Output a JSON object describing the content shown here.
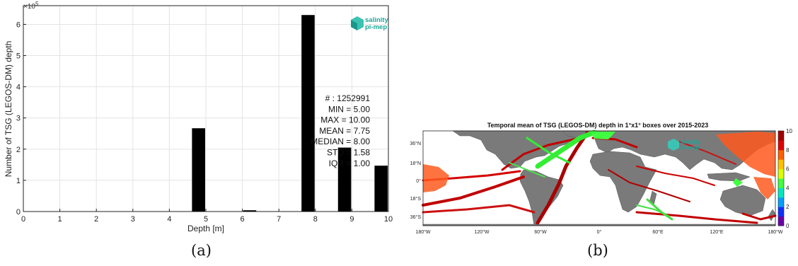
{
  "chart_data": [
    {
      "type": "bar",
      "panel_label": "(a)",
      "xlabel": "Depth [m]",
      "ylabel": "Number of TSG (LEGOS-DM) depth",
      "y_multiplier": "×10",
      "y_multiplier_exp": "5",
      "xlim": [
        0,
        10
      ],
      "ylim": [
        0,
        6.6
      ],
      "xticks": [
        "0",
        "1",
        "2",
        "3",
        "4",
        "5",
        "6",
        "7",
        "8",
        "9",
        "10"
      ],
      "yticks": [
        "0",
        "1",
        "2",
        "3",
        "4",
        "5",
        "6"
      ],
      "bars": [
        {
          "x": 4.8,
          "value": 2.67
        },
        {
          "x": 6.2,
          "value": 0.04
        },
        {
          "x": 7.8,
          "value": 6.3
        },
        {
          "x": 8.8,
          "value": 2.05
        },
        {
          "x": 9.8,
          "value": 1.47
        }
      ],
      "logo": {
        "line1": "salinity",
        "line2": "pi-mep",
        "color": "#1aa89a"
      },
      "stats": [
        "# : 1252991",
        "MIN = 5.00",
        "MAX =  10.00",
        "MEAN = 7.75",
        "MEDIAN = 8.00",
        "STD = 1.58",
        "IQR = 1.00"
      ],
      "grid": true
    },
    {
      "type": "heatmap",
      "panel_label": "(b)",
      "title": "Temporal mean of TSG (LEGOS-DM) depth in 1°x1° boxes over 2015-2023",
      "lat_ticks": [
        "36°N",
        "18°N",
        "0°",
        "18°S",
        "36°S"
      ],
      "lon_ticks": [
        "180°W",
        "120°W",
        "60°W",
        "0°",
        "60°E",
        "120°E",
        "180°W"
      ],
      "colorbar_ticks": [
        "0",
        "2",
        "4",
        "6",
        "8",
        "10"
      ],
      "colorbar_range": [
        0,
        10
      ],
      "colorbar_colors": [
        "#6a00a8",
        "#1030ff",
        "#00a0ff",
        "#00e8c0",
        "#40ff40",
        "#d8ff00",
        "#ffc000",
        "#ff6000",
        "#e00000",
        "#a00000"
      ],
      "logo": {
        "line1": "salinity",
        "line2": "pi-mep",
        "color": "#1aa89a"
      }
    }
  ]
}
